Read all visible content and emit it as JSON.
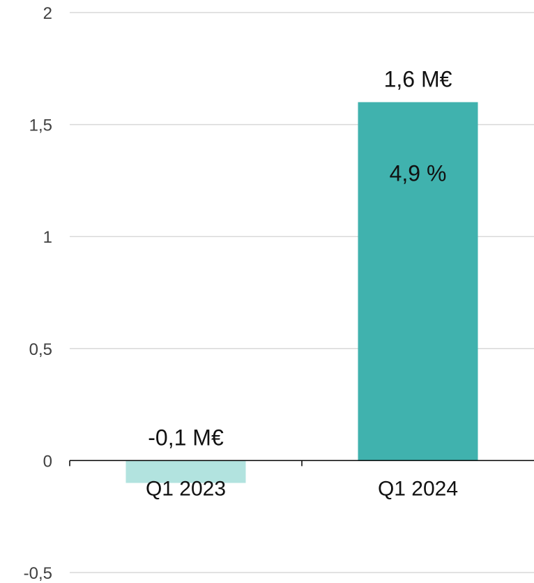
{
  "chart_data": {
    "type": "bar",
    "categories": [
      "Q1 2023",
      "Q1 2024"
    ],
    "values": [
      -0.1,
      1.6
    ],
    "value_labels": [
      "-0,1 M€",
      "1,6 M€"
    ],
    "inner_labels": [
      "",
      "4,9 %"
    ],
    "ylim": [
      -0.5,
      2
    ],
    "yticks": [
      2,
      1.5,
      1,
      0.5,
      0,
      -0.5
    ],
    "ytick_labels": [
      "2",
      "1,5",
      "1",
      "0,5",
      "0",
      "-0,5"
    ],
    "grid": true,
    "legend": "none",
    "title": "",
    "xlabel": "",
    "ylabel": "",
    "colors": {
      "bars": [
        "#b2e3df",
        "#40b2ae"
      ],
      "grid": "#d9d9d9",
      "axis": "#000000"
    }
  }
}
